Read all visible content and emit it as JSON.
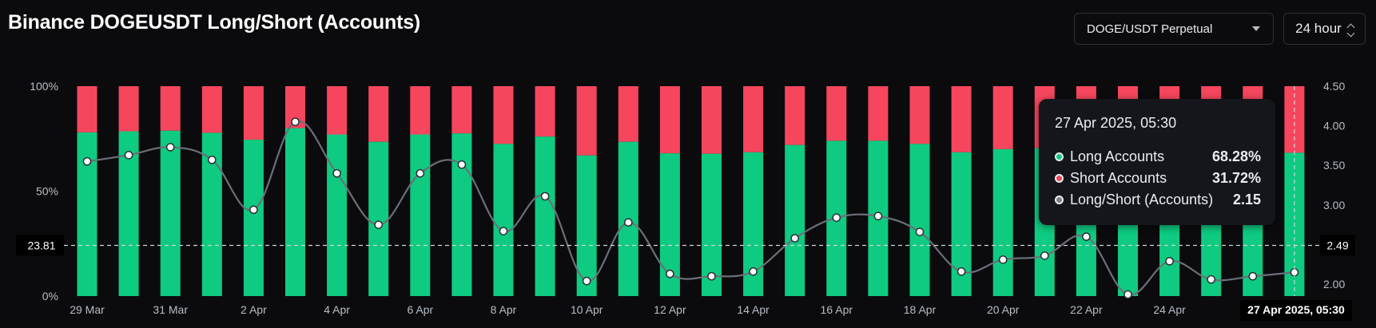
{
  "header": {
    "title": "Binance DOGEUSDT Long/Short (Accounts)",
    "symbol_select": "DOGE/USDT Perpetual",
    "period_select": "24 hour"
  },
  "colors": {
    "long": "#0ecb81",
    "short": "#f6465d",
    "ratio_line": "#6b6f78",
    "background": "#0b0b0e"
  },
  "tooltip": {
    "title": "27 Apr 2025, 05:30",
    "rows": [
      {
        "label": "Long Accounts",
        "value": "68.28%",
        "color": "#0ecb81"
      },
      {
        "label": "Short Accounts",
        "value": "31.72%",
        "color": "#f6465d"
      },
      {
        "label": "Long/Short (Accounts)",
        "value": "2.15",
        "color": "#7a7f88"
      }
    ]
  },
  "chart_data": {
    "type": "bar",
    "title": "Binance DOGEUSDT Long/Short (Accounts)",
    "categories": [
      "29 Mar",
      "30 Mar",
      "31 Mar",
      "1 Apr",
      "2 Apr",
      "3 Apr",
      "4 Apr",
      "5 Apr",
      "6 Apr",
      "7 Apr",
      "8 Apr",
      "9 Apr",
      "10 Apr",
      "11 Apr",
      "12 Apr",
      "13 Apr",
      "14 Apr",
      "15 Apr",
      "16 Apr",
      "17 Apr",
      "18 Apr",
      "19 Apr",
      "20 Apr",
      "21 Apr",
      "22 Apr",
      "23 Apr",
      "24 Apr",
      "25 Apr",
      "26 Apr",
      "27 Apr"
    ],
    "x_tick_labels": [
      "29 Mar",
      "31 Mar",
      "2 Apr",
      "4 Apr",
      "6 Apr",
      "8 Apr",
      "10 Apr",
      "12 Apr",
      "14 Apr",
      "16 Apr",
      "18 Apr",
      "20 Apr",
      "22 Apr",
      "24 Apr"
    ],
    "series": [
      {
        "name": "Long Accounts",
        "axis": "left",
        "values": [
          78.0,
          78.5,
          78.8,
          77.8,
          74.5,
          80.0,
          77.0,
          73.5,
          77.0,
          77.5,
          72.5,
          76.0,
          67.0,
          73.5,
          68.0,
          67.8,
          68.5,
          72.0,
          74.0,
          74.0,
          72.5,
          68.5,
          70.0,
          70.5,
          71.5,
          65.5,
          70.5,
          67.5,
          68.5,
          68.28
        ]
      },
      {
        "name": "Short Accounts",
        "axis": "left",
        "values": [
          22.0,
          21.5,
          21.2,
          22.2,
          25.5,
          20.0,
          23.0,
          26.5,
          23.0,
          22.5,
          27.5,
          24.0,
          33.0,
          26.5,
          32.0,
          32.2,
          31.5,
          28.0,
          26.0,
          26.0,
          27.5,
          31.5,
          30.0,
          29.5,
          28.5,
          34.5,
          29.5,
          32.5,
          31.5,
          31.72
        ]
      },
      {
        "name": "Long/Short (Accounts)",
        "axis": "right",
        "type": "line",
        "values": [
          3.55,
          3.63,
          3.73,
          3.57,
          2.94,
          4.05,
          3.4,
          2.75,
          3.4,
          3.51,
          2.67,
          3.11,
          2.04,
          2.78,
          2.13,
          2.1,
          2.16,
          2.58,
          2.84,
          2.86,
          2.66,
          2.16,
          2.31,
          2.36,
          2.6,
          1.87,
          2.29,
          2.06,
          2.1,
          2.15
        ]
      }
    ],
    "y_left": {
      "ticks": [
        "100%",
        "50%",
        "0%"
      ],
      "range": [
        0,
        100
      ]
    },
    "y_right": {
      "ticks": [
        "4.50",
        "4.00",
        "3.50",
        "3.00",
        "2.00"
      ],
      "range": [
        1.85,
        4.5
      ]
    },
    "crosshair": {
      "left_label": "23.81",
      "right_label": "2.49",
      "x_label": "27 Apr 2025, 05:30"
    }
  }
}
